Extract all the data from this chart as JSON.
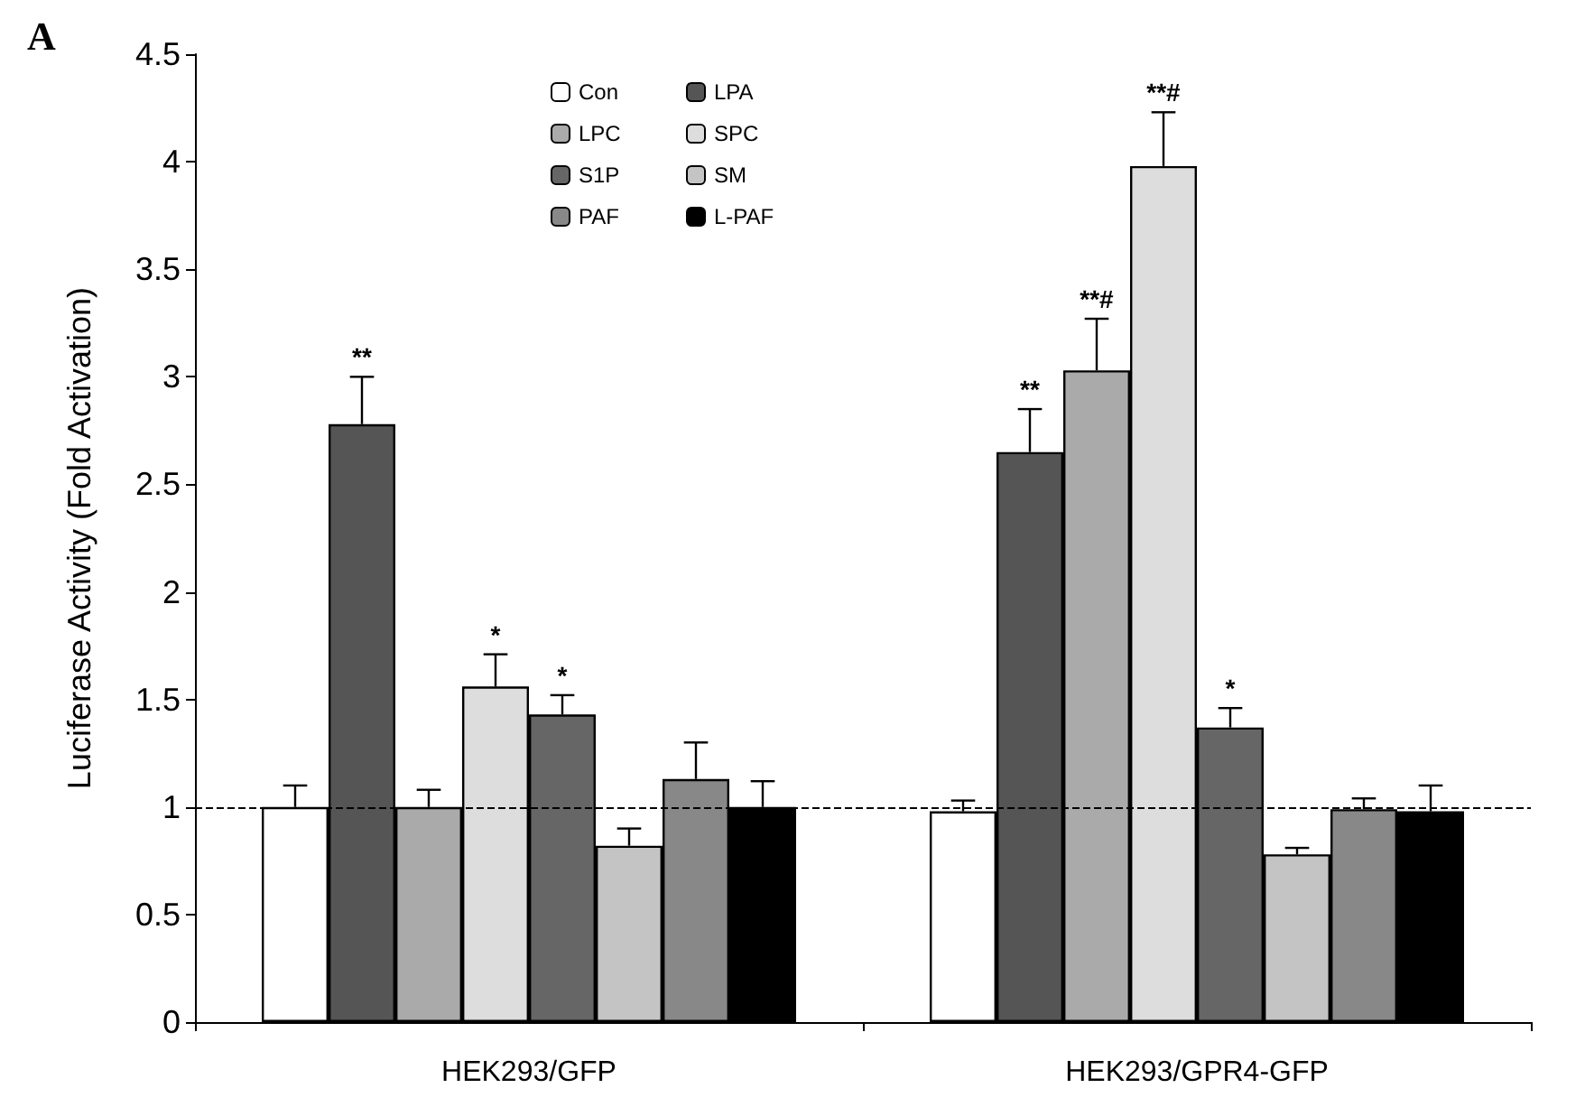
{
  "chart_data": {
    "type": "bar",
    "title": "A",
    "ylabel": "Luciferase Activity (Fold Activation)",
    "categories": [
      "HEK293/GFP",
      "HEK293/GPR4-GFP"
    ],
    "series": [
      {
        "name": "Con",
        "color": "#ffffff",
        "values": [
          1.0,
          0.98
        ],
        "errors": [
          0.1,
          0.05
        ],
        "value_labels": [
          null,
          null
        ]
      },
      {
        "name": "LPA",
        "color": "#555555",
        "values": [
          2.78,
          2.65
        ],
        "errors": [
          0.22,
          0.2
        ],
        "value_labels": [
          "**",
          "**"
        ]
      },
      {
        "name": "LPC",
        "color": "#aaaaaa",
        "values": [
          1.0,
          3.03
        ],
        "errors": [
          0.08,
          0.24
        ],
        "value_labels": [
          null,
          "**#"
        ]
      },
      {
        "name": "SPC",
        "color": "#dddddd",
        "values": [
          1.56,
          3.98
        ],
        "errors": [
          0.15,
          0.25
        ],
        "value_labels": [
          "*",
          "**#"
        ]
      },
      {
        "name": "S1P",
        "color": "#666666",
        "values": [
          1.43,
          1.37
        ],
        "errors": [
          0.09,
          0.09
        ],
        "value_labels": [
          "*",
          "*"
        ]
      },
      {
        "name": "SM",
        "color": "#c4c4c4",
        "values": [
          0.82,
          0.78
        ],
        "errors": [
          0.08,
          0.03
        ],
        "value_labels": [
          null,
          null
        ]
      },
      {
        "name": "PAF",
        "color": "#888888",
        "values": [
          1.13,
          0.99
        ],
        "errors": [
          0.17,
          0.05
        ],
        "value_labels": [
          null,
          null
        ]
      },
      {
        "name": "L-PAF",
        "color": "#000000",
        "values": [
          1.0,
          0.98
        ],
        "errors": [
          0.12,
          0.12
        ],
        "value_labels": [
          null,
          null
        ]
      }
    ],
    "ylim": [
      0,
      4.5
    ],
    "yticks": [
      0,
      0.5,
      1,
      1.5,
      2,
      2.5,
      3,
      3.5,
      4,
      4.5
    ],
    "grid": false,
    "legend": "top",
    "ref_lines": [
      {
        "axis": "y",
        "value": 1,
        "line_style": "dashed"
      }
    ]
  }
}
